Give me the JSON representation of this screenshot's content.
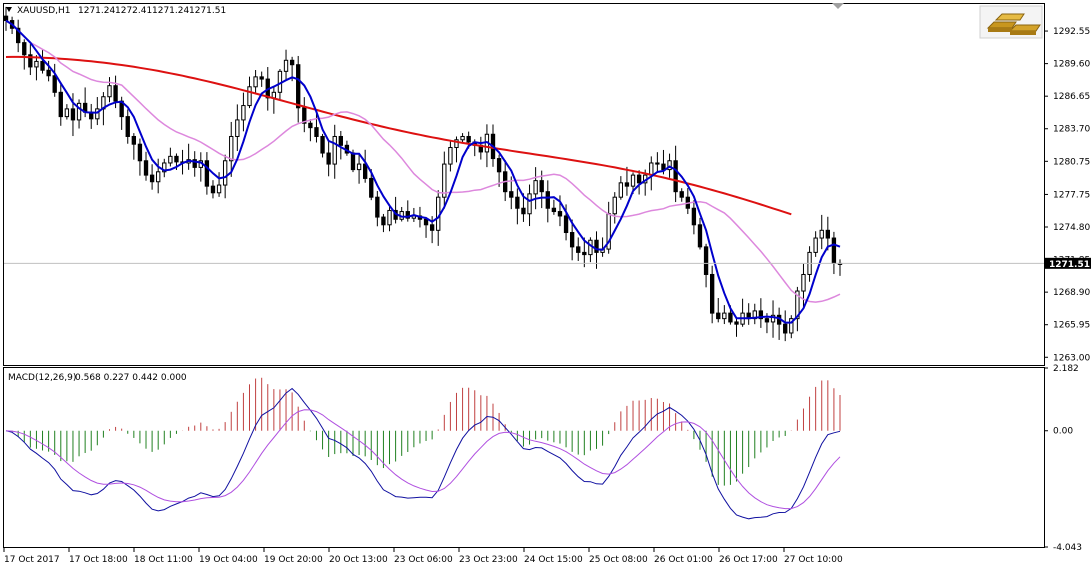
{
  "symbol_info": {
    "symbol": "XAUUSD,H1",
    "open": "1271.24",
    "high": "1272.41",
    "low": "1271.24",
    "close": "1271.51"
  },
  "macd_info": {
    "label": "MACD(12,26,9)",
    "values": "0.568 0.227 0.442 0.000"
  },
  "current_price": "1271.51",
  "logo_icon": "gold-bars-icon",
  "colors": {
    "candle": "#000000",
    "ma_fast": "#0000cc",
    "ma_mid": "#dd88dd",
    "ma_slow": "#dd1111",
    "hist_pos": "#c04040",
    "hist_neg": "#208020",
    "macd_line": "#1010a0",
    "signal_line": "#b050e0"
  },
  "chart_data": [
    {
      "type": "candlestick",
      "title": "XAUUSD,H1",
      "ylim": [
        1262.3,
        1295.0
      ],
      "y_ticks": [
        "1292.55",
        "1289.60",
        "1286.65",
        "1283.70",
        "1280.75",
        "1277.75",
        "1274.80",
        "1271.85",
        "1268.90",
        "1265.95",
        "1263.00"
      ],
      "x_ticks": [
        "17 Oct 2017",
        "17 Oct 18:00",
        "18 Oct 11:00",
        "19 Oct 04:00",
        "19 Oct 20:00",
        "20 Oct 13:00",
        "23 Oct 06:00",
        "23 Oct 23:00",
        "24 Oct 15:00",
        "25 Oct 08:00",
        "26 Oct 01:00",
        "26 Oct 17:00",
        "27 Oct 10:00"
      ],
      "close_path": [
        1293.5,
        1292.8,
        1291.5,
        1290.4,
        1289.3,
        1289.8,
        1289.0,
        1288.5,
        1287.0,
        1284.8,
        1285.5,
        1284.5,
        1286.0,
        1285.2,
        1284.6,
        1285.5,
        1286.6,
        1287.6,
        1286.2,
        1284.8,
        1283.0,
        1282.3,
        1280.8,
        1279.5,
        1278.9,
        1279.8,
        1280.6,
        1281.2,
        1280.7,
        1280.6,
        1280.9,
        1280.2,
        1280.8,
        1278.5,
        1277.9,
        1278.6,
        1280.8,
        1283.0,
        1284.5,
        1285.8,
        1287.5,
        1288.4,
        1288.2,
        1286.5,
        1287.0,
        1288.9,
        1289.9,
        1289.5,
        1285.6,
        1284.2,
        1283.8,
        1283.0,
        1281.5,
        1280.5,
        1283.0,
        1282.2,
        1281.5,
        1280.0,
        1280.5,
        1279.2,
        1277.5,
        1275.7,
        1275.0,
        1276.3,
        1275.5,
        1276.2,
        1275.6,
        1275.8,
        1275.5,
        1275.0,
        1274.5,
        1277.5,
        1280.5,
        1282.0,
        1282.7,
        1283.0,
        1282.5,
        1282.2,
        1281.6,
        1283.2,
        1281.0,
        1279.8,
        1278.0,
        1277.5,
        1276.5,
        1276.0,
        1277.8,
        1279.0,
        1278.0,
        1276.5,
        1276.2,
        1275.8,
        1274.3,
        1273.0,
        1272.5,
        1272.3,
        1273.6,
        1272.5,
        1272.8,
        1276.0,
        1277.5,
        1278.8,
        1278.5,
        1279.5,
        1278.8,
        1279.5,
        1280.6,
        1280.5,
        1280.0,
        1280.8,
        1278.0,
        1277.5,
        1276.5,
        1275.0,
        1273.0,
        1270.5,
        1267.0,
        1266.5,
        1267.0,
        1266.2,
        1266.0,
        1267.0,
        1266.5,
        1267.2,
        1266.5,
        1266.2,
        1266.8,
        1266.0,
        1265.2,
        1266.5,
        1269.0,
        1270.5,
        1272.5,
        1273.8,
        1274.5,
        1273.8,
        1271.5,
        1271.5
      ]
    },
    {
      "type": "macd",
      "title": "MACD(12,26,9)",
      "ylim": [
        -4.043,
        2.182
      ],
      "y_ticks": [
        "2.182",
        "0.00",
        "-4.043"
      ]
    }
  ]
}
